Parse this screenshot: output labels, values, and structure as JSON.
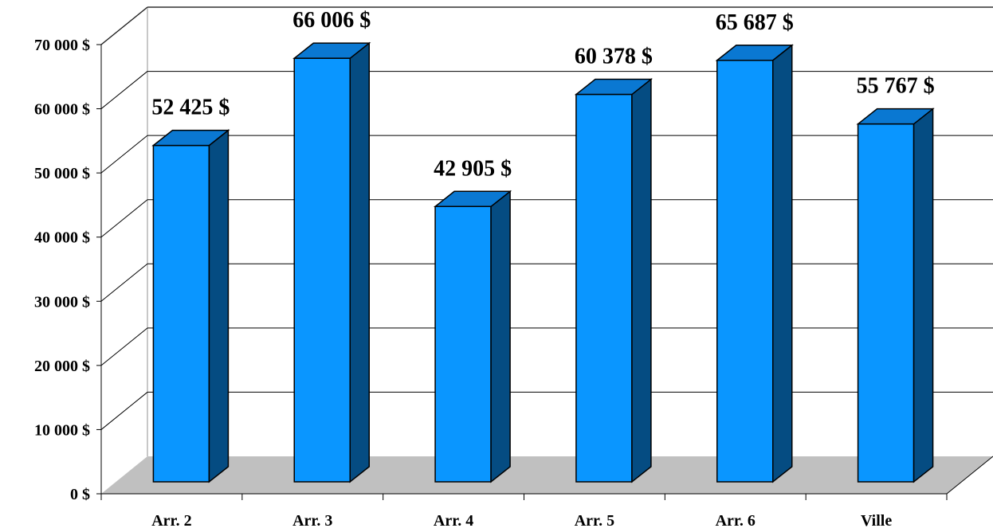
{
  "chart_data": {
    "type": "bar",
    "title": "",
    "xlabel": "",
    "ylabel": "",
    "categories": [
      "Arr. 2",
      "Arr. 3",
      "Arr. 4",
      "Arr. 5",
      "Arr. 6",
      "Ville"
    ],
    "values": [
      52425,
      66006,
      42905,
      60378,
      65687,
      55767
    ],
    "value_labels": [
      "52 425 $",
      "66 006 $",
      "42 905 $",
      "60 378 $",
      "65 687 $",
      "55 767 $"
    ],
    "ylim": [
      0,
      70000
    ],
    "y_ticks": [
      0,
      10000,
      20000,
      30000,
      40000,
      50000,
      60000,
      70000
    ],
    "y_tick_labels": [
      "0 $",
      "10 000 $",
      "20 000 $",
      "30 000 $",
      "40 000 $",
      "50 000 $",
      "60 000 $",
      "70 000 $"
    ],
    "grid": true,
    "legend": "none",
    "style": "3d",
    "colors": {
      "bar_front": "#0A96FF",
      "bar_side": "#054C82",
      "bar_top": "#0A78D2",
      "floor": "#C0C0C0",
      "gridline": "#000000"
    }
  }
}
